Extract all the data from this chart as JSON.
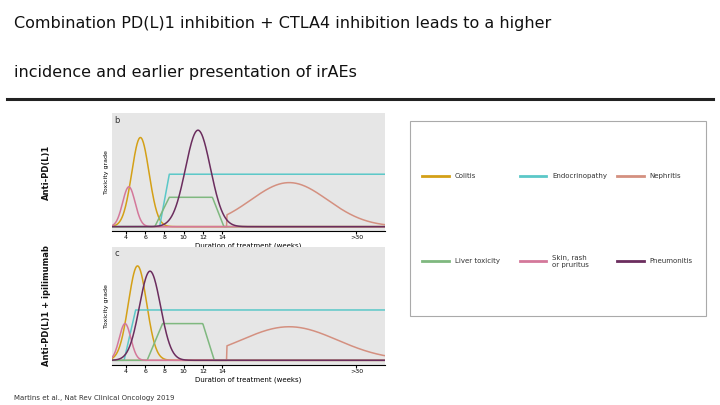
{
  "title_line1": "Combination PD(L)1 inhibition + CTLA4 inhibition leads to a higher",
  "title_line2": "incidence and earlier presentation of irAEs",
  "title_fontsize": 11.5,
  "title_color": "#111111",
  "background_color": "#ffffff",
  "plot_bg_color": "#e6e6e6",
  "label_top": "Anti-PD(L)1",
  "label_bottom": "Anti-PD(L)1 + ipilimumab",
  "sublabel_b": "b",
  "sublabel_c": "c",
  "xlabel": "Duration of treatment (weeks)",
  "ylabel": "Toxicity grade",
  "x_tick_vals": [
    4,
    6,
    8,
    10,
    12,
    14,
    28
  ],
  "x_tick_labels": [
    "4",
    "6",
    "8",
    "10",
    "12",
    "14",
    ">30"
  ],
  "colors": {
    "colitis": "#d4a017",
    "endocrinopathy": "#5bc8c8",
    "nephritis": "#d49080",
    "liver_toxicity": "#7fb87f",
    "skin_rash": "#d4789a",
    "pneumonitis": "#6b2d5e"
  },
  "legend_entries": [
    {
      "label": "Colitis",
      "color": "#d4a017"
    },
    {
      "label": "Endocrinopathy",
      "color": "#5bc8c8"
    },
    {
      "label": "Nephritis",
      "color": "#d49080"
    },
    {
      "label": "Liver toxicity",
      "color": "#7fb87f"
    },
    {
      "label": "Skin, rash\nor pruritus",
      "color": "#d4789a"
    },
    {
      "label": "Pneumonitis",
      "color": "#6b2d5e"
    }
  ],
  "footnote": "Martins et al., Nat Rev Clinical Oncology 2019"
}
